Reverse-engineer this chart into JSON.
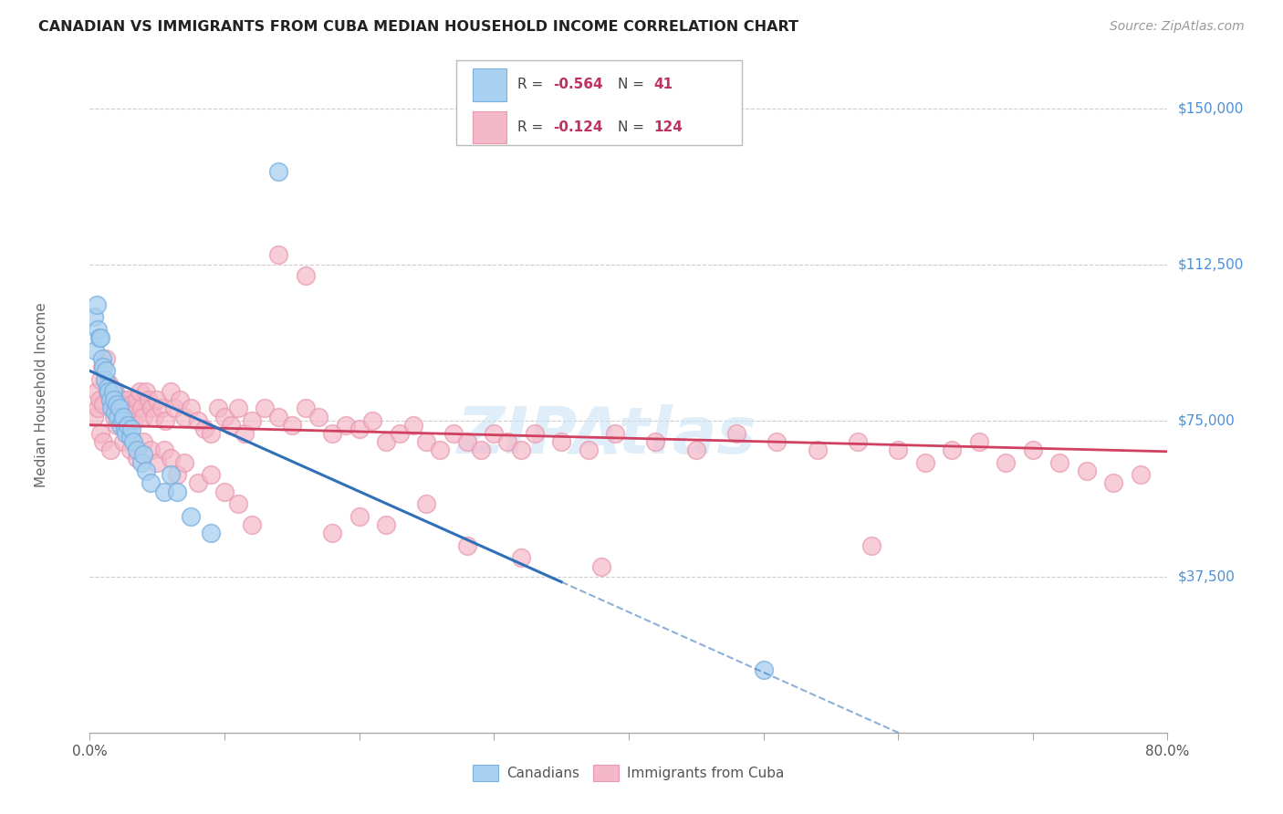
{
  "title": "CANADIAN VS IMMIGRANTS FROM CUBA MEDIAN HOUSEHOLD INCOME CORRELATION CHART",
  "source": "Source: ZipAtlas.com",
  "ylabel": "Median Household Income",
  "ytick_labels": [
    "$37,500",
    "$75,000",
    "$112,500",
    "$150,000"
  ],
  "ytick_values": [
    37500,
    75000,
    112500,
    150000
  ],
  "ymax": 162500,
  "ymin": 0,
  "xmin": 0.0,
  "xmax": 0.8,
  "watermark": "ZIPAtlas",
  "legend_blue_R": "-0.564",
  "legend_blue_N": "41",
  "legend_pink_R": "-0.124",
  "legend_pink_N": "124",
  "blue_color": "#a8d0f0",
  "pink_color": "#f5b8c8",
  "line_blue_color": "#3070b8",
  "line_pink_color": "#d04060",
  "scatter_blue_edge": "#7ab0e0",
  "scatter_pink_edge": "#e898b0",
  "blue_line_intercept": 87000,
  "blue_line_slope": -145000,
  "pink_line_intercept": 74000,
  "pink_line_slope": -8000,
  "canadians_x": [
    0.003,
    0.004,
    0.005,
    0.006,
    0.007,
    0.008,
    0.009,
    0.01,
    0.011,
    0.012,
    0.013,
    0.014,
    0.015,
    0.016,
    0.017,
    0.018,
    0.019,
    0.02,
    0.021,
    0.022,
    0.023,
    0.024,
    0.025,
    0.026,
    0.027,
    0.028,
    0.03,
    0.031,
    0.032,
    0.035,
    0.038,
    0.04,
    0.042,
    0.045,
    0.055,
    0.06,
    0.065,
    0.075,
    0.09,
    0.14,
    0.5
  ],
  "canadians_y": [
    100000,
    92000,
    103000,
    97000,
    95000,
    95000,
    90000,
    88000,
    85000,
    87000,
    83000,
    82000,
    80000,
    78000,
    82000,
    80000,
    77000,
    79000,
    76000,
    78000,
    74000,
    75000,
    76000,
    73000,
    72000,
    74000,
    71000,
    73000,
    70000,
    68000,
    65000,
    67000,
    63000,
    60000,
    58000,
    62000,
    58000,
    52000,
    48000,
    135000,
    15000
  ],
  "cuba_x": [
    0.003,
    0.005,
    0.006,
    0.007,
    0.008,
    0.009,
    0.01,
    0.012,
    0.013,
    0.014,
    0.015,
    0.016,
    0.017,
    0.018,
    0.019,
    0.02,
    0.021,
    0.022,
    0.023,
    0.024,
    0.025,
    0.026,
    0.027,
    0.028,
    0.029,
    0.03,
    0.031,
    0.032,
    0.033,
    0.034,
    0.035,
    0.037,
    0.038,
    0.04,
    0.042,
    0.044,
    0.046,
    0.048,
    0.05,
    0.053,
    0.056,
    0.06,
    0.063,
    0.067,
    0.07,
    0.075,
    0.08,
    0.085,
    0.09,
    0.095,
    0.1,
    0.105,
    0.11,
    0.115,
    0.12,
    0.13,
    0.14,
    0.15,
    0.16,
    0.17,
    0.18,
    0.19,
    0.2,
    0.21,
    0.22,
    0.23,
    0.24,
    0.25,
    0.26,
    0.27,
    0.28,
    0.29,
    0.3,
    0.31,
    0.32,
    0.33,
    0.35,
    0.37,
    0.39,
    0.42,
    0.45,
    0.48,
    0.51,
    0.54,
    0.57,
    0.6,
    0.62,
    0.64,
    0.66,
    0.68,
    0.7,
    0.72,
    0.74,
    0.76,
    0.78,
    0.008,
    0.01,
    0.015,
    0.02,
    0.025,
    0.03,
    0.035,
    0.04,
    0.045,
    0.05,
    0.055,
    0.06,
    0.065,
    0.07,
    0.08,
    0.09,
    0.1,
    0.11,
    0.12,
    0.14,
    0.16,
    0.18,
    0.2,
    0.22,
    0.25,
    0.28,
    0.32,
    0.38,
    0.58
  ],
  "cuba_y": [
    76000,
    82000,
    78000,
    80000,
    85000,
    88000,
    79000,
    90000,
    82000,
    84000,
    80000,
    83000,
    78000,
    76000,
    82000,
    80000,
    78000,
    75000,
    79000,
    77000,
    80000,
    76000,
    78000,
    80000,
    75000,
    76000,
    79000,
    77000,
    75000,
    78000,
    80000,
    82000,
    78000,
    76000,
    82000,
    80000,
    78000,
    76000,
    80000,
    78000,
    75000,
    82000,
    78000,
    80000,
    76000,
    78000,
    75000,
    73000,
    72000,
    78000,
    76000,
    74000,
    78000,
    72000,
    75000,
    78000,
    76000,
    74000,
    78000,
    76000,
    72000,
    74000,
    73000,
    75000,
    70000,
    72000,
    74000,
    70000,
    68000,
    72000,
    70000,
    68000,
    72000,
    70000,
    68000,
    72000,
    70000,
    68000,
    72000,
    70000,
    68000,
    72000,
    70000,
    68000,
    70000,
    68000,
    65000,
    68000,
    70000,
    65000,
    68000,
    65000,
    63000,
    60000,
    62000,
    72000,
    70000,
    68000,
    74000,
    70000,
    68000,
    66000,
    70000,
    68000,
    65000,
    68000,
    66000,
    62000,
    65000,
    60000,
    62000,
    58000,
    55000,
    50000,
    115000,
    110000,
    48000,
    52000,
    50000,
    55000,
    45000,
    42000,
    40000,
    45000
  ]
}
